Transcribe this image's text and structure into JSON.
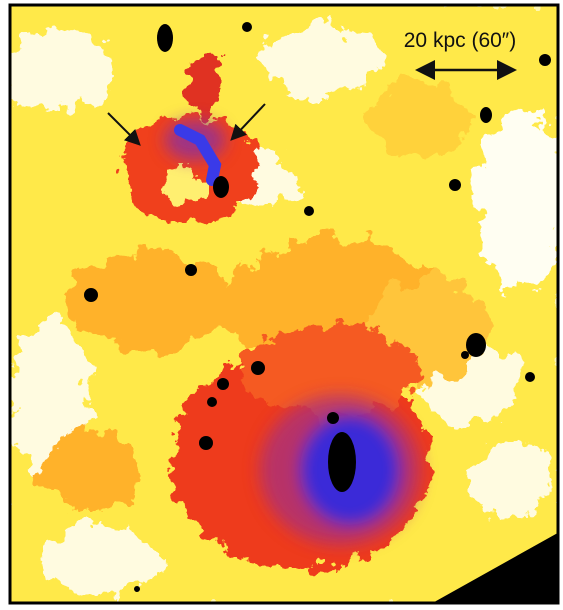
{
  "scale_bar": {
    "label": "20 kpc (60″)"
  }
}
